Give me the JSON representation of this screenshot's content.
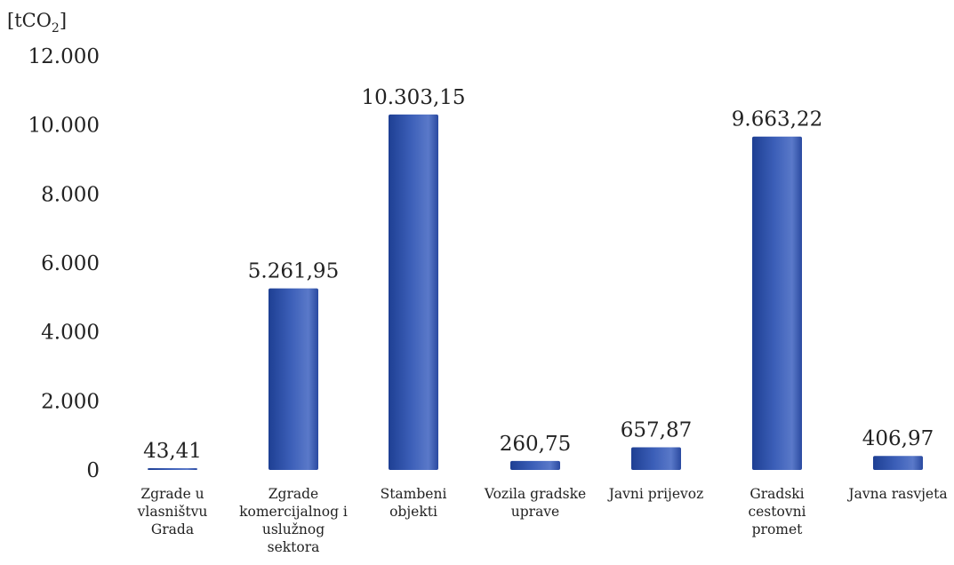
{
  "chart_data": {
    "type": "bar",
    "unit_label": "[tCO",
    "unit_subscript": "2",
    "unit_close": "]",
    "categories": [
      [
        "Zgrade u",
        "vlasništvu",
        "Grada"
      ],
      [
        "Zgrade",
        "komercijalnog i",
        "uslužnog",
        "sektora"
      ],
      [
        "Stambeni",
        "objekti"
      ],
      [
        "Vozila gradske",
        "uprave"
      ],
      [
        "Javni prijevoz"
      ],
      [
        "Gradski",
        "cestovni",
        "promet"
      ],
      [
        "Javna rasvjeta"
      ]
    ],
    "values": [
      43.41,
      5261.95,
      10303.15,
      260.75,
      657.87,
      9663.22,
      406.97
    ],
    "value_labels": [
      "43,41",
      "5.261,95",
      "10.303,15",
      "260,75",
      "657,87",
      "9.663,22",
      "406,97"
    ],
    "yticks": [
      0,
      2000,
      4000,
      6000,
      8000,
      10000,
      12000
    ],
    "ytick_labels": [
      "0",
      "2.000",
      "4.000",
      "6.000",
      "8.000",
      "10.000",
      "12.000"
    ],
    "ylim": [
      0,
      12000
    ],
    "grid": false,
    "legend": "none",
    "colors": {
      "bar_dark": "#1e3f93",
      "bar_mid": "#3c5fb8",
      "bar_light": "#5a79c9",
      "text": "#222222"
    }
  }
}
